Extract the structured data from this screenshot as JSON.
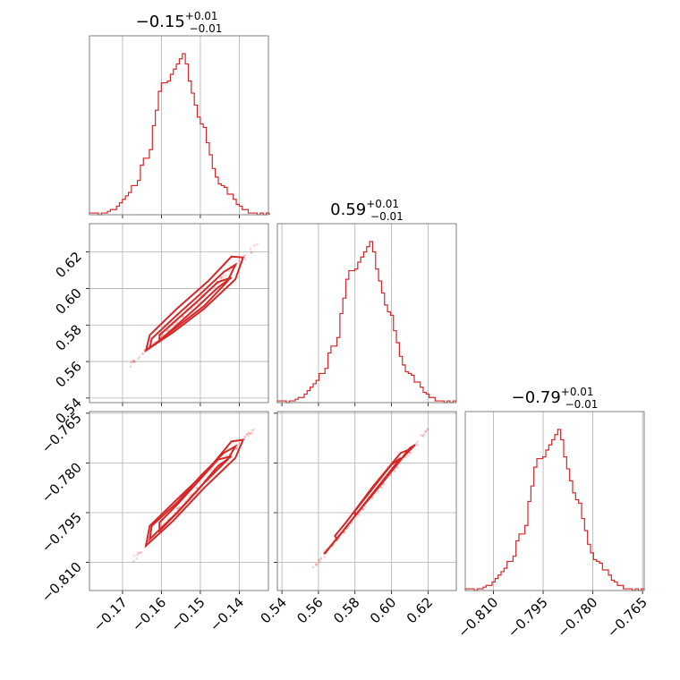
{
  "colors": {
    "series": "#d62728",
    "frame": "#7f7f7f",
    "grid": "#b0b0b0"
  },
  "chart_data": {
    "type": "corner",
    "parameters": [
      {
        "title": {
          "median": "−0.15",
          "plus": "+0.01",
          "minus": "−0.01"
        },
        "range": [
          -0.1785,
          -0.1325
        ],
        "ticks": [
          -0.17,
          -0.16,
          -0.15,
          -0.14
        ],
        "tick_labels": [
          "−0.17",
          "−0.16",
          "−0.15",
          "−0.14"
        ],
        "hist": {
          "start": -0.1785,
          "width": 0.00077,
          "counts": [
            1,
            1,
            1,
            0,
            1,
            1,
            2,
            3,
            3,
            5,
            7,
            9,
            11,
            13,
            17,
            17,
            20,
            29,
            33,
            33,
            38,
            52,
            61,
            72,
            77,
            77,
            78,
            82,
            85,
            88,
            91,
            94,
            88,
            78,
            71,
            64,
            57,
            53,
            51,
            42,
            35,
            27,
            22,
            18,
            17,
            16,
            12,
            12,
            9,
            6,
            5,
            3,
            3,
            1,
            1,
            1,
            0,
            1,
            0,
            1
          ]
        }
      },
      {
        "title": {
          "median": "0.59",
          "plus": "+0.01",
          "minus": "−0.01"
        },
        "range": [
          0.5375,
          0.6355
        ],
        "ticks": [
          0.54,
          0.56,
          0.58,
          0.6,
          0.62
        ],
        "tick_labels": [
          "0.54",
          "0.56",
          "0.58",
          "0.60",
          "0.62"
        ],
        "hist": {
          "start": 0.5375,
          "width": 0.00163,
          "counts": [
            1,
            1,
            1,
            0,
            1,
            1,
            2,
            3,
            3,
            5,
            7,
            9,
            11,
            13,
            17,
            17,
            20,
            29,
            33,
            33,
            38,
            52,
            61,
            72,
            77,
            77,
            78,
            82,
            85,
            88,
            91,
            94,
            88,
            78,
            71,
            64,
            57,
            53,
            51,
            42,
            35,
            27,
            22,
            18,
            17,
            16,
            12,
            12,
            9,
            6,
            5,
            3,
            3,
            1,
            1,
            1,
            0,
            1,
            0,
            1
          ]
        }
      },
      {
        "title": {
          "median": "−0.79",
          "plus": "+0.01",
          "minus": "−0.01"
        },
        "range": [
          -0.8185,
          -0.7645
        ],
        "ticks": [
          -0.81,
          -0.795,
          -0.78,
          -0.765
        ],
        "tick_labels": [
          "−0.810",
          "−0.795",
          "−0.780",
          "−0.765"
        ],
        "hist": {
          "start": -0.8185,
          "width": 0.0009,
          "counts": [
            1,
            1,
            1,
            0,
            1,
            1,
            2,
            3,
            3,
            5,
            7,
            9,
            11,
            13,
            17,
            17,
            20,
            29,
            33,
            33,
            38,
            52,
            61,
            72,
            77,
            77,
            78,
            82,
            85,
            88,
            91,
            94,
            88,
            78,
            71,
            64,
            57,
            53,
            51,
            42,
            35,
            27,
            22,
            18,
            17,
            16,
            12,
            12,
            9,
            6,
            5,
            3,
            3,
            1,
            1,
            1,
            0,
            1,
            0,
            1
          ]
        }
      }
    ],
    "pairs": [
      {
        "x_param": 0,
        "y_param": 1,
        "contours": [
          [
            [
              -0.1605,
              0.5715
            ],
            [
              -0.1555,
              0.581
            ],
            [
              -0.1505,
              0.5905
            ],
            [
              -0.1455,
              0.6005
            ],
            [
              -0.142,
              0.606
            ],
            [
              -0.1455,
              0.6035
            ],
            [
              -0.1505,
              0.5935
            ],
            [
              -0.1555,
              0.584
            ],
            [
              -0.1605,
              0.5745
            ]
          ],
          [
            [
              -0.163,
              0.5675
            ],
            [
              -0.156,
              0.579
            ],
            [
              -0.149,
              0.5905
            ],
            [
              -0.143,
              0.604
            ],
            [
              -0.141,
              0.613
            ],
            [
              -0.144,
              0.609
            ],
            [
              -0.15,
              0.597
            ],
            [
              -0.156,
              0.5855
            ],
            [
              -0.1625,
              0.5725
            ]
          ],
          [
            [
              -0.164,
              0.566
            ],
            [
              -0.157,
              0.576
            ],
            [
              -0.149,
              0.589
            ],
            [
              -0.141,
              0.605
            ],
            [
              -0.139,
              0.617
            ],
            [
              -0.142,
              0.6175
            ],
            [
              -0.148,
              0.604
            ],
            [
              -0.156,
              0.589
            ],
            [
              -0.163,
              0.5745
            ]
          ]
        ]
      },
      {
        "x_param": 0,
        "y_param": 2,
        "contours": [
          [
            [
              -0.1605,
              -0.8005
            ],
            [
              -0.1555,
              -0.7945
            ],
            [
              -0.1505,
              -0.788
            ],
            [
              -0.1455,
              -0.781
            ],
            [
              -0.142,
              -0.778
            ],
            [
              -0.1455,
              -0.779
            ],
            [
              -0.1505,
              -0.7855
            ],
            [
              -0.1555,
              -0.792
            ],
            [
              -0.1605,
              -0.798
            ]
          ],
          [
            [
              -0.163,
              -0.803
            ],
            [
              -0.156,
              -0.795
            ],
            [
              -0.149,
              -0.786
            ],
            [
              -0.143,
              -0.779
            ],
            [
              -0.141,
              -0.775
            ],
            [
              -0.144,
              -0.777
            ],
            [
              -0.15,
              -0.784
            ],
            [
              -0.156,
              -0.792
            ],
            [
              -0.1625,
              -0.799
            ]
          ],
          [
            [
              -0.164,
              -0.805
            ],
            [
              -0.157,
              -0.7975
            ],
            [
              -0.149,
              -0.7875
            ],
            [
              -0.141,
              -0.7785
            ],
            [
              -0.139,
              -0.773
            ],
            [
              -0.142,
              -0.7735
            ],
            [
              -0.148,
              -0.782
            ],
            [
              -0.156,
              -0.791
            ],
            [
              -0.163,
              -0.799
            ]
          ]
        ]
      },
      {
        "x_param": 1,
        "y_param": 2,
        "contours": [
          [
            [
              0.58,
              -0.796
            ],
            [
              0.59,
              -0.789
            ],
            [
              0.6,
              -0.782
            ],
            [
              0.605,
              -0.7785
            ],
            [
              0.6,
              -0.7805
            ],
            [
              0.59,
              -0.7875
            ],
            [
              0.58,
              -0.7945
            ]
          ],
          [
            [
              0.57,
              -0.803
            ],
            [
              0.585,
              -0.7925
            ],
            [
              0.6,
              -0.7825
            ],
            [
              0.6095,
              -0.776
            ],
            [
              0.605,
              -0.777
            ],
            [
              0.59,
              -0.787
            ],
            [
              0.575,
              -0.798
            ],
            [
              0.569,
              -0.802
            ]
          ],
          [
            [
              0.564,
              -0.807
            ],
            [
              0.58,
              -0.796
            ],
            [
              0.595,
              -0.786
            ],
            [
              0.61,
              -0.7755
            ],
            [
              0.613,
              -0.7745
            ],
            [
              0.605,
              -0.779
            ],
            [
              0.59,
              -0.789
            ],
            [
              0.575,
              -0.7995
            ],
            [
              0.563,
              -0.8075
            ]
          ]
        ]
      }
    ],
    "grid": true,
    "legend": "none"
  }
}
